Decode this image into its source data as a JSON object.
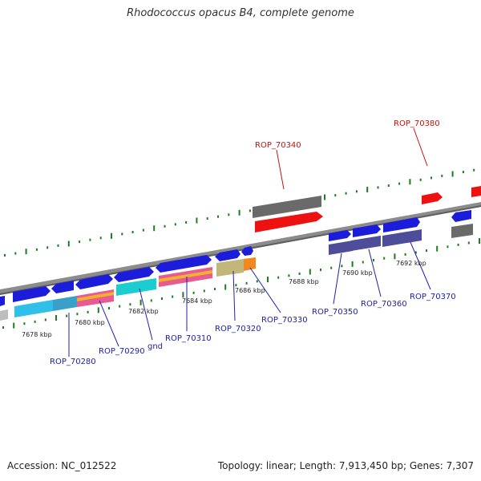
{
  "title": "Rhodococcus opacus B4, complete genome",
  "accession": "Accession: NC_012522",
  "summary": "Topology: linear; Length: 7,913,450 bp; Genes: 7,307",
  "colors": {
    "forward_gene": "#1c1cdb",
    "rrna_highlight": "#ee1111",
    "pseudo_gene": "#6a6a6a",
    "tick": "#1d7d1d",
    "backbone": "#8c8c8c",
    "label_forward": "#2020b0",
    "label_highlight": "#cc1111"
  },
  "scale_labels": [
    "7678 kbp",
    "7680 kbp",
    "7682 kbp",
    "7684 kbp",
    "7686 kbp",
    "7688 kbp",
    "7690 kbp",
    "7692 kbp"
  ],
  "gene_labels": [
    {
      "text": "ROP_70280",
      "color": "#2020b0"
    },
    {
      "text": "ROP_70290",
      "color": "#2020b0"
    },
    {
      "text": "gnd",
      "color": "#2020b0"
    },
    {
      "text": "ROP_70310",
      "color": "#2020b0"
    },
    {
      "text": "ROP_70320",
      "color": "#2020b0"
    },
    {
      "text": "ROP_70330",
      "color": "#2020b0"
    },
    {
      "text": "ROP_70340",
      "color": "#cc1111"
    },
    {
      "text": "ROP_70350",
      "color": "#2020b0"
    },
    {
      "text": "ROP_70360",
      "color": "#2020b0"
    },
    {
      "text": "ROP_70370",
      "color": "#2020b0"
    },
    {
      "text": "ROP_70380",
      "color": "#cc1111"
    }
  ]
}
